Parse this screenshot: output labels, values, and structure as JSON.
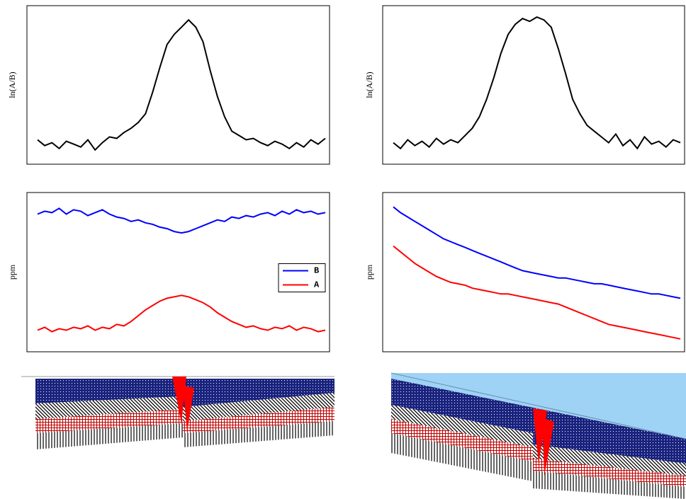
{
  "chart_data": [
    {
      "type": "line",
      "y_label": "ln(A/B)",
      "color": "#000000",
      "ylim": [
        0,
        100
      ],
      "values": [
        12,
        8,
        10,
        6,
        11,
        9,
        7,
        12,
        5,
        10,
        14,
        13,
        17,
        20,
        24,
        30,
        45,
        62,
        78,
        85,
        90,
        95,
        90,
        80,
        60,
        42,
        28,
        18,
        15,
        12,
        13,
        10,
        8,
        11,
        9,
        6,
        10,
        7,
        12,
        9,
        13
      ]
    },
    {
      "type": "line",
      "y_label": "ln(A/B)",
      "color": "#000000",
      "ylim": [
        0,
        100
      ],
      "values": [
        10,
        6,
        12,
        8,
        11,
        7,
        13,
        9,
        12,
        10,
        15,
        20,
        28,
        40,
        55,
        72,
        85,
        92,
        96,
        94,
        97,
        95,
        90,
        75,
        58,
        40,
        30,
        22,
        18,
        14,
        10,
        16,
        8,
        12,
        6,
        14,
        9,
        11,
        7,
        12,
        10
      ]
    },
    {
      "type": "line",
      "y_label": "ppm",
      "ylim": [
        0,
        100
      ],
      "legend": "center-right",
      "series": [
        {
          "name": "B",
          "color": "#0000ff",
          "values": [
            90,
            92,
            91,
            94,
            90,
            93,
            92,
            89,
            91,
            93,
            90,
            88,
            87,
            85,
            86,
            84,
            83,
            81,
            80,
            78,
            77,
            78,
            80,
            82,
            84,
            86,
            85,
            88,
            87,
            89,
            88,
            90,
            91,
            89,
            92,
            90,
            93,
            91,
            92,
            90,
            91
          ]
        },
        {
          "name": "A",
          "color": "#ff0000",
          "values": [
            10,
            12,
            9,
            11,
            10,
            12,
            11,
            13,
            10,
            12,
            11,
            14,
            13,
            16,
            20,
            24,
            27,
            30,
            32,
            33,
            34,
            33,
            31,
            29,
            26,
            22,
            19,
            16,
            14,
            12,
            13,
            11,
            10,
            12,
            11,
            13,
            10,
            12,
            11,
            9,
            10
          ]
        }
      ]
    },
    {
      "type": "line",
      "y_label": "ppm",
      "ylim": [
        0,
        100
      ],
      "series": [
        {
          "color": "#0000ff",
          "values": [
            95,
            91,
            88,
            85,
            82,
            79,
            76,
            73,
            71,
            69,
            67,
            65,
            63,
            61,
            59,
            57,
            55,
            53,
            51,
            50,
            49,
            48,
            47,
            46,
            46,
            45,
            44,
            43,
            42,
            42,
            41,
            40,
            39,
            38,
            37,
            36,
            35,
            35,
            34,
            33,
            32
          ]
        },
        {
          "color": "#ff0000",
          "values": [
            68,
            64,
            60,
            56,
            53,
            50,
            47,
            45,
            43,
            42,
            41,
            39,
            38,
            37,
            36,
            35,
            35,
            34,
            33,
            32,
            31,
            30,
            29,
            28,
            26,
            24,
            22,
            20,
            18,
            16,
            14,
            13,
            12,
            11,
            10,
            9,
            8,
            7,
            6,
            5,
            4
          ]
        }
      ]
    }
  ]
}
